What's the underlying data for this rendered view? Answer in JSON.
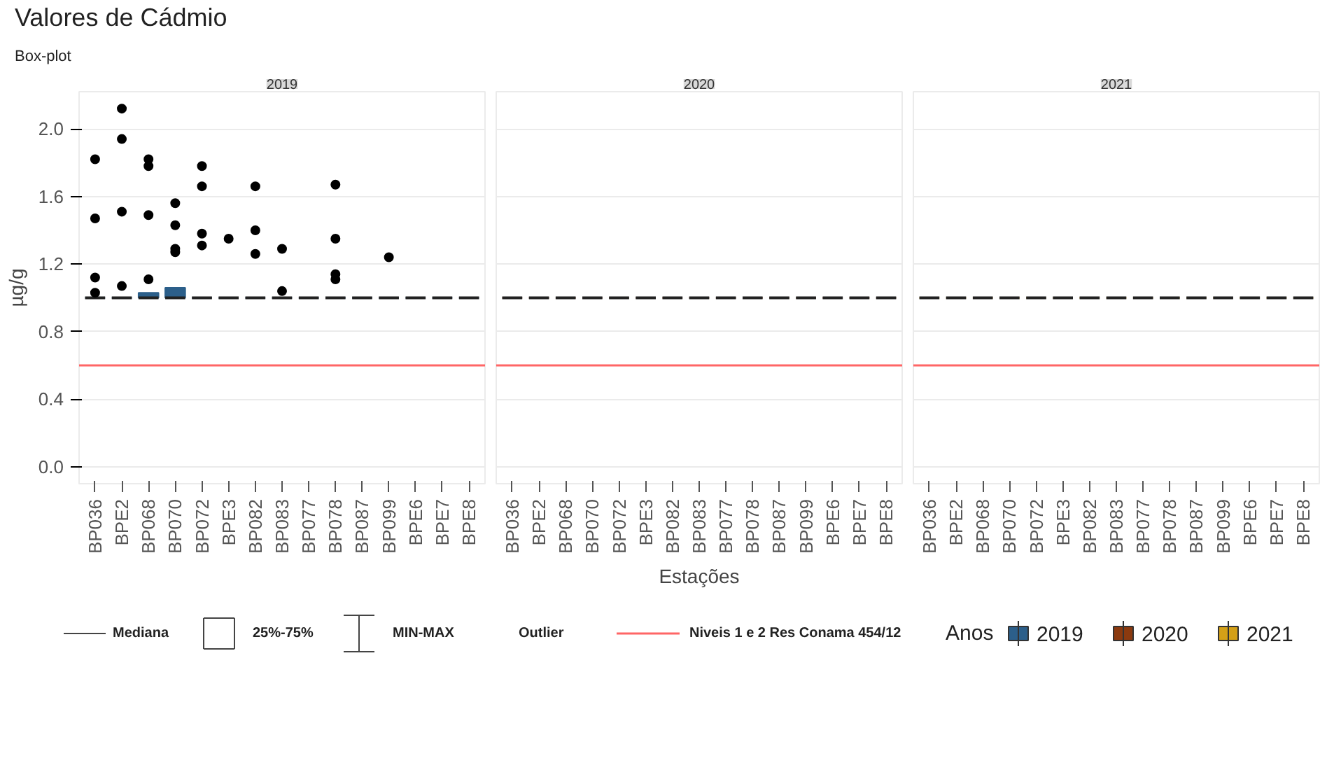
{
  "chart_data": [
    {
      "type": "box",
      "title": "2019",
      "legend": "bottom",
      "annotations": [
        "Valores de Cádmio",
        "Box-plot"
      ],
      "ylabel": "µg/g",
      "categories": [
        "BP036",
        "BPE2",
        "BP068",
        "BP070",
        "BP072",
        "BPE3",
        "BP082",
        "BP083",
        "BP077",
        "BP078",
        "BP087",
        "BP099",
        "BPE6",
        "BPE7",
        "BPE8"
      ],
      "series": [
        {
          "name": "2019",
          "color": "#2c5f8a",
          "boxes": [
            {
              "low": 1.0,
              "q1": 1.0,
              "median": 1.0,
              "q3": 1.0,
              "high": 1.0,
              "outliers": [
                1.82,
                1.47,
                1.12,
                1.03
              ]
            },
            {
              "low": 1.0,
              "q1": 1.0,
              "median": 1.0,
              "q3": 1.0,
              "high": 1.0,
              "outliers": [
                2.12,
                1.94,
                1.51,
                1.07
              ]
            },
            {
              "low": 1.0,
              "q1": 1.0,
              "median": 1.0,
              "q3": 1.03,
              "high": 1.03,
              "outliers": [
                1.82,
                1.78,
                1.49,
                1.11
              ]
            },
            {
              "low": 1.0,
              "q1": 1.0,
              "median": 1.0,
              "q3": 1.06,
              "high": 1.06,
              "outliers": [
                1.56,
                1.43,
                1.29,
                1.27
              ]
            },
            {
              "low": 1.0,
              "q1": 1.0,
              "median": 1.0,
              "q3": 1.0,
              "high": 1.0,
              "outliers": [
                1.78,
                1.66,
                1.38,
                1.31
              ]
            },
            {
              "low": 1.0,
              "q1": 1.0,
              "median": 1.0,
              "q3": 1.0,
              "high": 1.0,
              "outliers": [
                1.35
              ]
            },
            {
              "low": 1.0,
              "q1": 1.0,
              "median": 1.0,
              "q3": 1.0,
              "high": 1.0,
              "outliers": [
                1.66,
                1.4,
                1.26
              ]
            },
            {
              "low": 1.0,
              "q1": 1.0,
              "median": 1.0,
              "q3": 1.0,
              "high": 1.0,
              "outliers": [
                1.29,
                1.04
              ]
            },
            {
              "low": 1.0,
              "q1": 1.0,
              "median": 1.0,
              "q3": 1.0,
              "high": 1.0
            },
            {
              "low": 1.0,
              "q1": 1.0,
              "median": 1.0,
              "q3": 1.0,
              "high": 1.0,
              "outliers": [
                1.67,
                1.35,
                1.14,
                1.11
              ]
            },
            {
              "low": 1.0,
              "q1": 1.0,
              "median": 1.0,
              "q3": 1.0,
              "high": 1.0
            },
            {
              "low": 1.0,
              "q1": 1.0,
              "median": 1.0,
              "q3": 1.0,
              "high": 1.0,
              "outliers": [
                1.24
              ]
            },
            {
              "low": 1.0,
              "q1": 1.0,
              "median": 1.0,
              "q3": 1.0,
              "high": 1.0
            },
            {
              "low": 1.0,
              "q1": 1.0,
              "median": 1.0,
              "q3": 1.0,
              "high": 1.0
            },
            {
              "low": 1.0,
              "q1": 1.0,
              "median": 1.0,
              "q3": 1.0,
              "high": 1.0
            }
          ]
        }
      ],
      "ylim": [
        -0.1,
        2.22
      ],
      "yticks": [
        {
          "value": 0,
          "label": "0.0"
        },
        0.4,
        0.8,
        1.2,
        1.6,
        {
          "value": 2,
          "label": "2.0"
        }
      ],
      "grid": "y",
      "ref_lines": [
        {
          "axis": "y",
          "value": 0.6,
          "label": "Niveis 1 e 2 Res Conama 454/12",
          "color": "#ff6666"
        }
      ]
    },
    {
      "type": "box",
      "title": "2020",
      "legend": "bottom",
      "xlabel": "Estações",
      "categories": [
        "BP036",
        "BPE2",
        "BP068",
        "BP070",
        "BP072",
        "BPE3",
        "BP082",
        "BP083",
        "BP077",
        "BP078",
        "BP087",
        "BP099",
        "BPE6",
        "BPE7",
        "BPE8"
      ],
      "series": [
        {
          "name": "2020",
          "color": "#8b3a0f",
          "boxes": [
            {
              "low": 1.0,
              "q1": 1.0,
              "median": 1.0,
              "q3": 1.0,
              "high": 1.0
            },
            {
              "low": 1.0,
              "q1": 1.0,
              "median": 1.0,
              "q3": 1.0,
              "high": 1.0
            },
            {
              "low": 1.0,
              "q1": 1.0,
              "median": 1.0,
              "q3": 1.0,
              "high": 1.0
            },
            {
              "low": 1.0,
              "q1": 1.0,
              "median": 1.0,
              "q3": 1.0,
              "high": 1.0
            },
            {
              "low": 1.0,
              "q1": 1.0,
              "median": 1.0,
              "q3": 1.0,
              "high": 1.0
            },
            {
              "low": 1.0,
              "q1": 1.0,
              "median": 1.0,
              "q3": 1.0,
              "high": 1.0
            },
            {
              "low": 1.0,
              "q1": 1.0,
              "median": 1.0,
              "q3": 1.0,
              "high": 1.0
            },
            {
              "low": 1.0,
              "q1": 1.0,
              "median": 1.0,
              "q3": 1.0,
              "high": 1.0
            },
            {
              "low": 1.0,
              "q1": 1.0,
              "median": 1.0,
              "q3": 1.0,
              "high": 1.0
            },
            {
              "low": 1.0,
              "q1": 1.0,
              "median": 1.0,
              "q3": 1.0,
              "high": 1.0
            },
            {
              "low": 1.0,
              "q1": 1.0,
              "median": 1.0,
              "q3": 1.0,
              "high": 1.0
            },
            {
              "low": 1.0,
              "q1": 1.0,
              "median": 1.0,
              "q3": 1.0,
              "high": 1.0
            },
            {
              "low": 1.0,
              "q1": 1.0,
              "median": 1.0,
              "q3": 1.0,
              "high": 1.0
            },
            {
              "low": 1.0,
              "q1": 1.0,
              "median": 1.0,
              "q3": 1.0,
              "high": 1.0
            },
            {
              "low": 1.0,
              "q1": 1.0,
              "median": 1.0,
              "q3": 1.0,
              "high": 1.0
            }
          ]
        }
      ],
      "ylim": [
        -0.1,
        2.22
      ],
      "yticks": [
        0,
        0.4,
        0.8,
        1.2,
        1.6,
        2
      ],
      "grid": "y",
      "tick_labels": "x",
      "ref_lines": [
        {
          "axis": "y",
          "value": 0.6,
          "color": "#ff6666"
        }
      ]
    },
    {
      "type": "box",
      "title": "2021",
      "legend": "bottom",
      "legend_title": "Anos",
      "annotations": [
        "Mediana",
        "25%-75%",
        "MIN-MAX",
        "Outlier"
      ],
      "categories": [
        "BP036",
        "BPE2",
        "BP068",
        "BP070",
        "BP072",
        "BPE3",
        "BP082",
        "BP083",
        "BP077",
        "BP078",
        "BP087",
        "BP099",
        "BPE6",
        "BPE7",
        "BPE8"
      ],
      "series": [
        {
          "name": "2021",
          "color": "#d4a017",
          "boxes": [
            {
              "low": 1.0,
              "q1": 1.0,
              "median": 1.0,
              "q3": 1.0,
              "high": 1.0
            },
            {
              "low": 1.0,
              "q1": 1.0,
              "median": 1.0,
              "q3": 1.0,
              "high": 1.0
            },
            {
              "low": 1.0,
              "q1": 1.0,
              "median": 1.0,
              "q3": 1.0,
              "high": 1.0
            },
            {
              "low": 1.0,
              "q1": 1.0,
              "median": 1.0,
              "q3": 1.0,
              "high": 1.0
            },
            {
              "low": 1.0,
              "q1": 1.0,
              "median": 1.0,
              "q3": 1.0,
              "high": 1.0
            },
            {
              "low": 1.0,
              "q1": 1.0,
              "median": 1.0,
              "q3": 1.0,
              "high": 1.0
            },
            {
              "low": 1.0,
              "q1": 1.0,
              "median": 1.0,
              "q3": 1.0,
              "high": 1.0
            },
            {
              "low": 1.0,
              "q1": 1.0,
              "median": 1.0,
              "q3": 1.0,
              "high": 1.0
            },
            {
              "low": 1.0,
              "q1": 1.0,
              "median": 1.0,
              "q3": 1.0,
              "high": 1.0
            },
            {
              "low": 1.0,
              "q1": 1.0,
              "median": 1.0,
              "q3": 1.0,
              "high": 1.0
            },
            {
              "low": 1.0,
              "q1": 1.0,
              "median": 1.0,
              "q3": 1.0,
              "high": 1.0
            },
            {
              "low": 1.0,
              "q1": 1.0,
              "median": 1.0,
              "q3": 1.0,
              "high": 1.0
            },
            {
              "low": 1.0,
              "q1": 1.0,
              "median": 1.0,
              "q3": 1.0,
              "high": 1.0
            },
            {
              "low": 1.0,
              "q1": 1.0,
              "median": 1.0,
              "q3": 1.0,
              "high": 1.0
            },
            {
              "low": 1.0,
              "q1": 1.0,
              "median": 1.0,
              "q3": 1.0,
              "high": 1.0
            }
          ]
        }
      ],
      "ylim": [
        -0.1,
        2.22
      ],
      "yticks": [
        0,
        0.4,
        0.8,
        1.2,
        1.6,
        2
      ],
      "grid": "y",
      "tick_labels": "x",
      "ref_lines": [
        {
          "axis": "y",
          "value": 0.6,
          "color": "#ff6666"
        }
      ]
    }
  ]
}
